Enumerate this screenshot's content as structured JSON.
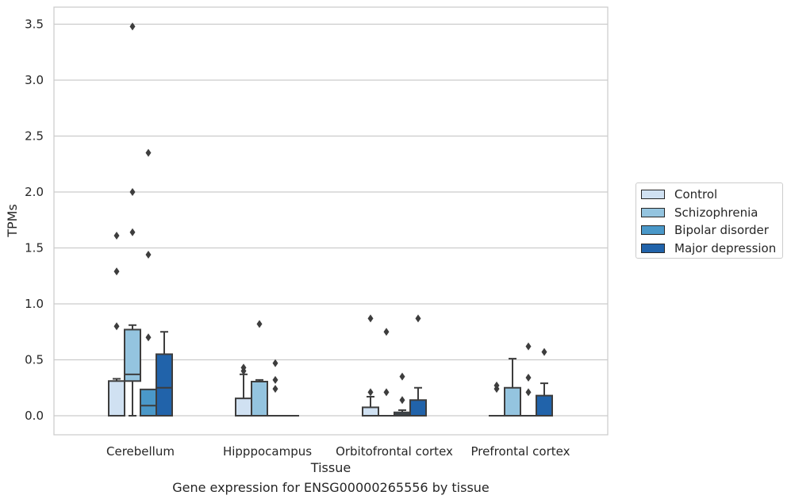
{
  "chart_data": {
    "type": "box",
    "title": "",
    "caption": "Gene expression for ENSG00000265556 by tissue",
    "xlabel": "Tissue",
    "ylabel": "TPMs",
    "ylim": [
      -0.17,
      3.66
    ],
    "yticks": [
      "0.0",
      "0.5",
      "1.0",
      "1.5",
      "2.0",
      "2.5",
      "3.0",
      "3.5"
    ],
    "ytick_values": [
      0,
      0.5,
      1.0,
      1.5,
      2.0,
      2.5,
      3.0,
      3.5
    ],
    "grid": "horizontal",
    "legend_position": "center-right",
    "categories": [
      "Cerebellum",
      "Hipppocampus",
      "Orbitofrontal cortex",
      "Prefrontal cortex"
    ],
    "series": [
      {
        "name": "Control",
        "color": "#d0e1f2",
        "boxes": [
          {
            "q1": 0,
            "median": 0,
            "q3": 0.31,
            "whisker_low": 0,
            "whisker_high": 0.33,
            "outliers": [
              0.8,
              1.29,
              1.61
            ]
          },
          {
            "q1": 0,
            "median": 0,
            "q3": 0.155,
            "whisker_low": 0,
            "whisker_high": 0.37,
            "outliers": [
              0.4,
              0.43
            ]
          },
          {
            "q1": 0,
            "median": 0,
            "q3": 0.075,
            "whisker_low": 0,
            "whisker_high": 0.17,
            "outliers": [
              0.21,
              0.87
            ]
          },
          {
            "q1": 0,
            "median": 0,
            "q3": 0,
            "whisker_low": 0,
            "whisker_high": 0,
            "outliers": [
              0.24,
              0.27
            ]
          }
        ]
      },
      {
        "name": "Schizophrenia",
        "color": "#94c4df",
        "boxes": [
          {
            "q1": 0.31,
            "median": 0.37,
            "q3": 0.77,
            "whisker_low": 0,
            "whisker_high": 0.81,
            "outliers": [
              1.64,
              2.0,
              3.48
            ]
          },
          {
            "q1": 0,
            "median": 0,
            "q3": 0.305,
            "whisker_low": 0,
            "whisker_high": 0.32,
            "outliers": [
              0.82
            ]
          },
          {
            "q1": 0,
            "median": 0,
            "q3": 0,
            "whisker_low": 0,
            "whisker_high": 0,
            "outliers": [
              0.21,
              0.75
            ]
          },
          {
            "q1": 0,
            "median": 0,
            "q3": 0.25,
            "whisker_low": 0,
            "whisker_high": 0.51,
            "outliers": []
          }
        ]
      },
      {
        "name": "Bipolar disorder",
        "color": "#4a98c9",
        "boxes": [
          {
            "q1": 0,
            "median": 0.09,
            "q3": 0.235,
            "whisker_low": 0,
            "whisker_high": 0.235,
            "outliers": [
              0.7,
              1.44,
              2.35
            ]
          },
          {
            "q1": 0,
            "median": 0,
            "q3": 0,
            "whisker_low": 0,
            "whisker_high": 0,
            "outliers": [
              0.24,
              0.32,
              0.47
            ]
          },
          {
            "q1": 0,
            "median": 0.015,
            "q3": 0.03,
            "whisker_low": 0,
            "whisker_high": 0.05,
            "outliers": [
              0.14,
              0.35
            ]
          },
          {
            "q1": 0,
            "median": 0,
            "q3": 0,
            "whisker_low": 0,
            "whisker_high": 0,
            "outliers": [
              0.21,
              0.34,
              0.62
            ]
          }
        ]
      },
      {
        "name": "Major depression",
        "color": "#2163aa",
        "boxes": [
          {
            "q1": 0,
            "median": 0.25,
            "q3": 0.55,
            "whisker_low": 0,
            "whisker_high": 0.75,
            "outliers": []
          },
          {
            "q1": 0,
            "median": 0,
            "q3": 0,
            "whisker_low": 0,
            "whisker_high": 0,
            "outliers": []
          },
          {
            "q1": 0,
            "median": 0,
            "q3": 0.14,
            "whisker_low": 0,
            "whisker_high": 0.25,
            "outliers": [
              0.87
            ]
          },
          {
            "q1": 0,
            "median": 0,
            "q3": 0.18,
            "whisker_low": 0,
            "whisker_high": 0.29,
            "outliers": [
              0.57
            ]
          }
        ]
      }
    ]
  }
}
